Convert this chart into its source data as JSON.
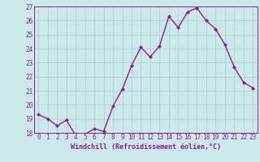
{
  "x": [
    0,
    1,
    2,
    3,
    4,
    5,
    6,
    7,
    8,
    9,
    10,
    11,
    12,
    13,
    14,
    15,
    16,
    17,
    18,
    19,
    20,
    21,
    22,
    23
  ],
  "y": [
    19.3,
    19.0,
    18.5,
    18.9,
    17.8,
    17.9,
    18.3,
    18.1,
    19.9,
    21.1,
    22.8,
    24.1,
    23.4,
    24.2,
    26.3,
    25.5,
    26.6,
    26.9,
    26.0,
    25.4,
    24.3,
    22.7,
    21.6,
    21.2
  ],
  "line_color": "#882288",
  "marker": "D",
  "marker_size": 2.0,
  "bg_color": "#cce8ea",
  "grid_color": "#aacccc",
  "xlabel": "Windchill (Refroidissement éolien,°C)",
  "xlabel_color": "#882288",
  "tick_color": "#882288",
  "ylim": [
    18,
    27
  ],
  "yticks": [
    18,
    19,
    20,
    21,
    22,
    23,
    24,
    25,
    26,
    27
  ],
  "xticks": [
    0,
    1,
    2,
    3,
    4,
    5,
    6,
    7,
    8,
    9,
    10,
    11,
    12,
    13,
    14,
    15,
    16,
    17,
    18,
    19,
    20,
    21,
    22,
    23
  ],
  "linewidth": 1.0,
  "tick_fontsize": 5.5,
  "xlabel_fontsize": 6.0
}
